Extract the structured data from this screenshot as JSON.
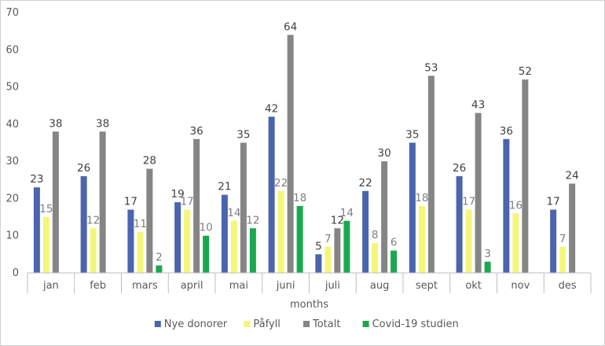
{
  "chart_data": {
    "type": "bar",
    "title": "",
    "xlabel": "months",
    "ylabel": "",
    "ylim": [
      0,
      70
    ],
    "yticks": [
      0,
      10,
      20,
      30,
      40,
      50,
      60,
      70
    ],
    "grid": false,
    "legend_position": "bottom",
    "categories": [
      "jan",
      "feb",
      "mars",
      "april",
      "mai",
      "juni",
      "juli",
      "aug",
      "sept",
      "okt",
      "nov",
      "des"
    ],
    "series": [
      {
        "name": "Nye donorer",
        "color": "#4a64ae",
        "values": [
          23,
          26,
          17,
          19,
          21,
          42,
          5,
          22,
          35,
          26,
          36,
          17
        ]
      },
      {
        "name": "Påfyll",
        "color": "#f4f67a",
        "values": [
          15,
          12,
          11,
          17,
          14,
          22,
          7,
          8,
          18,
          17,
          16,
          7
        ]
      },
      {
        "name": "Totalt",
        "color": "#858585",
        "values": [
          38,
          38,
          28,
          36,
          35,
          64,
          12,
          30,
          53,
          43,
          52,
          24
        ]
      },
      {
        "name": "Covid-19 studien",
        "color": "#1aa84e",
        "values": [
          null,
          null,
          2,
          10,
          12,
          18,
          14,
          6,
          null,
          3,
          null,
          null
        ]
      }
    ]
  }
}
